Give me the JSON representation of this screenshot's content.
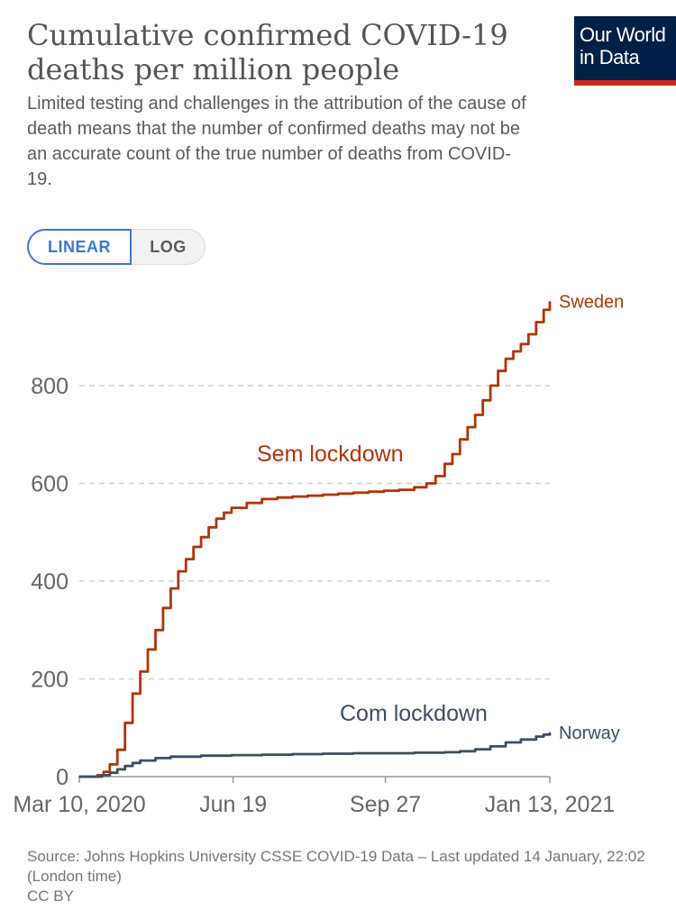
{
  "header": {
    "title": "Cumulative confirmed COVID-19 deaths per million people",
    "subtitle": "Limited testing and challenges in the attribution of the cause of death means that the number of confirmed deaths may not be an accurate count of the true number of deaths from COVID-19."
  },
  "logo": {
    "text": "Our World\nin Data"
  },
  "scale_toggle": {
    "linear_label": "LINEAR",
    "log_label": "LOG",
    "selected": "LINEAR"
  },
  "colors": {
    "sweden": "#b13507",
    "norway": "#3c4e66",
    "accent": "#3d78d8",
    "grid": "#cfcfcf",
    "axis_text": "#666666"
  },
  "chart_data": {
    "type": "line",
    "title": "Cumulative confirmed COVID-19 deaths per million people",
    "xlabel": "",
    "ylabel": "",
    "x_ticks": [
      "Mar 10, 2020",
      "Jun 19",
      "Sep 27",
      "Jan 13, 2021"
    ],
    "x_tick_days": [
      0,
      101,
      201,
      309
    ],
    "xlim": [
      0,
      309
    ],
    "y_ticks": [
      0,
      200,
      400,
      600,
      800
    ],
    "ylim": [
      0,
      975
    ],
    "grid": true,
    "series": [
      {
        "name": "Sweden",
        "x": [
          0,
          8,
          12,
          16,
          20,
          25,
          30,
          35,
          40,
          45,
          50,
          55,
          60,
          65,
          70,
          75,
          80,
          85,
          90,
          95,
          100,
          110,
          120,
          130,
          140,
          150,
          160,
          170,
          180,
          190,
          200,
          210,
          220,
          228,
          234,
          240,
          245,
          250,
          255,
          260,
          265,
          270,
          275,
          280,
          285,
          290,
          295,
          300,
          305,
          309
        ],
        "values": [
          0,
          0,
          3,
          10,
          25,
          55,
          110,
          170,
          215,
          260,
          300,
          345,
          385,
          420,
          445,
          470,
          490,
          510,
          528,
          540,
          550,
          560,
          568,
          571,
          573,
          575,
          577,
          579,
          581,
          583,
          585,
          587,
          592,
          600,
          615,
          640,
          660,
          690,
          715,
          740,
          770,
          800,
          830,
          855,
          870,
          885,
          905,
          930,
          955,
          972
        ]
      },
      {
        "name": "Norway",
        "x": [
          0,
          10,
          15,
          20,
          25,
          30,
          35,
          40,
          50,
          60,
          80,
          100,
          120,
          140,
          160,
          180,
          200,
          220,
          240,
          250,
          260,
          270,
          280,
          290,
          300,
          305,
          309
        ],
        "values": [
          0,
          0,
          3,
          8,
          15,
          22,
          28,
          33,
          38,
          41,
          43,
          44,
          45,
          46,
          47,
          48,
          48,
          49,
          50,
          52,
          56,
          62,
          70,
          76,
          82,
          86,
          90
        ]
      }
    ],
    "line_labels": [
      "Sweden",
      "Norway"
    ],
    "annotations": [
      "Sem lockdown",
      "Com lockdown"
    ]
  },
  "footer": {
    "source": "Source: Johns Hopkins University CSSE COVID-19 Data – Last updated 14 January, 22:02 (London time)",
    "license": "CC BY"
  }
}
